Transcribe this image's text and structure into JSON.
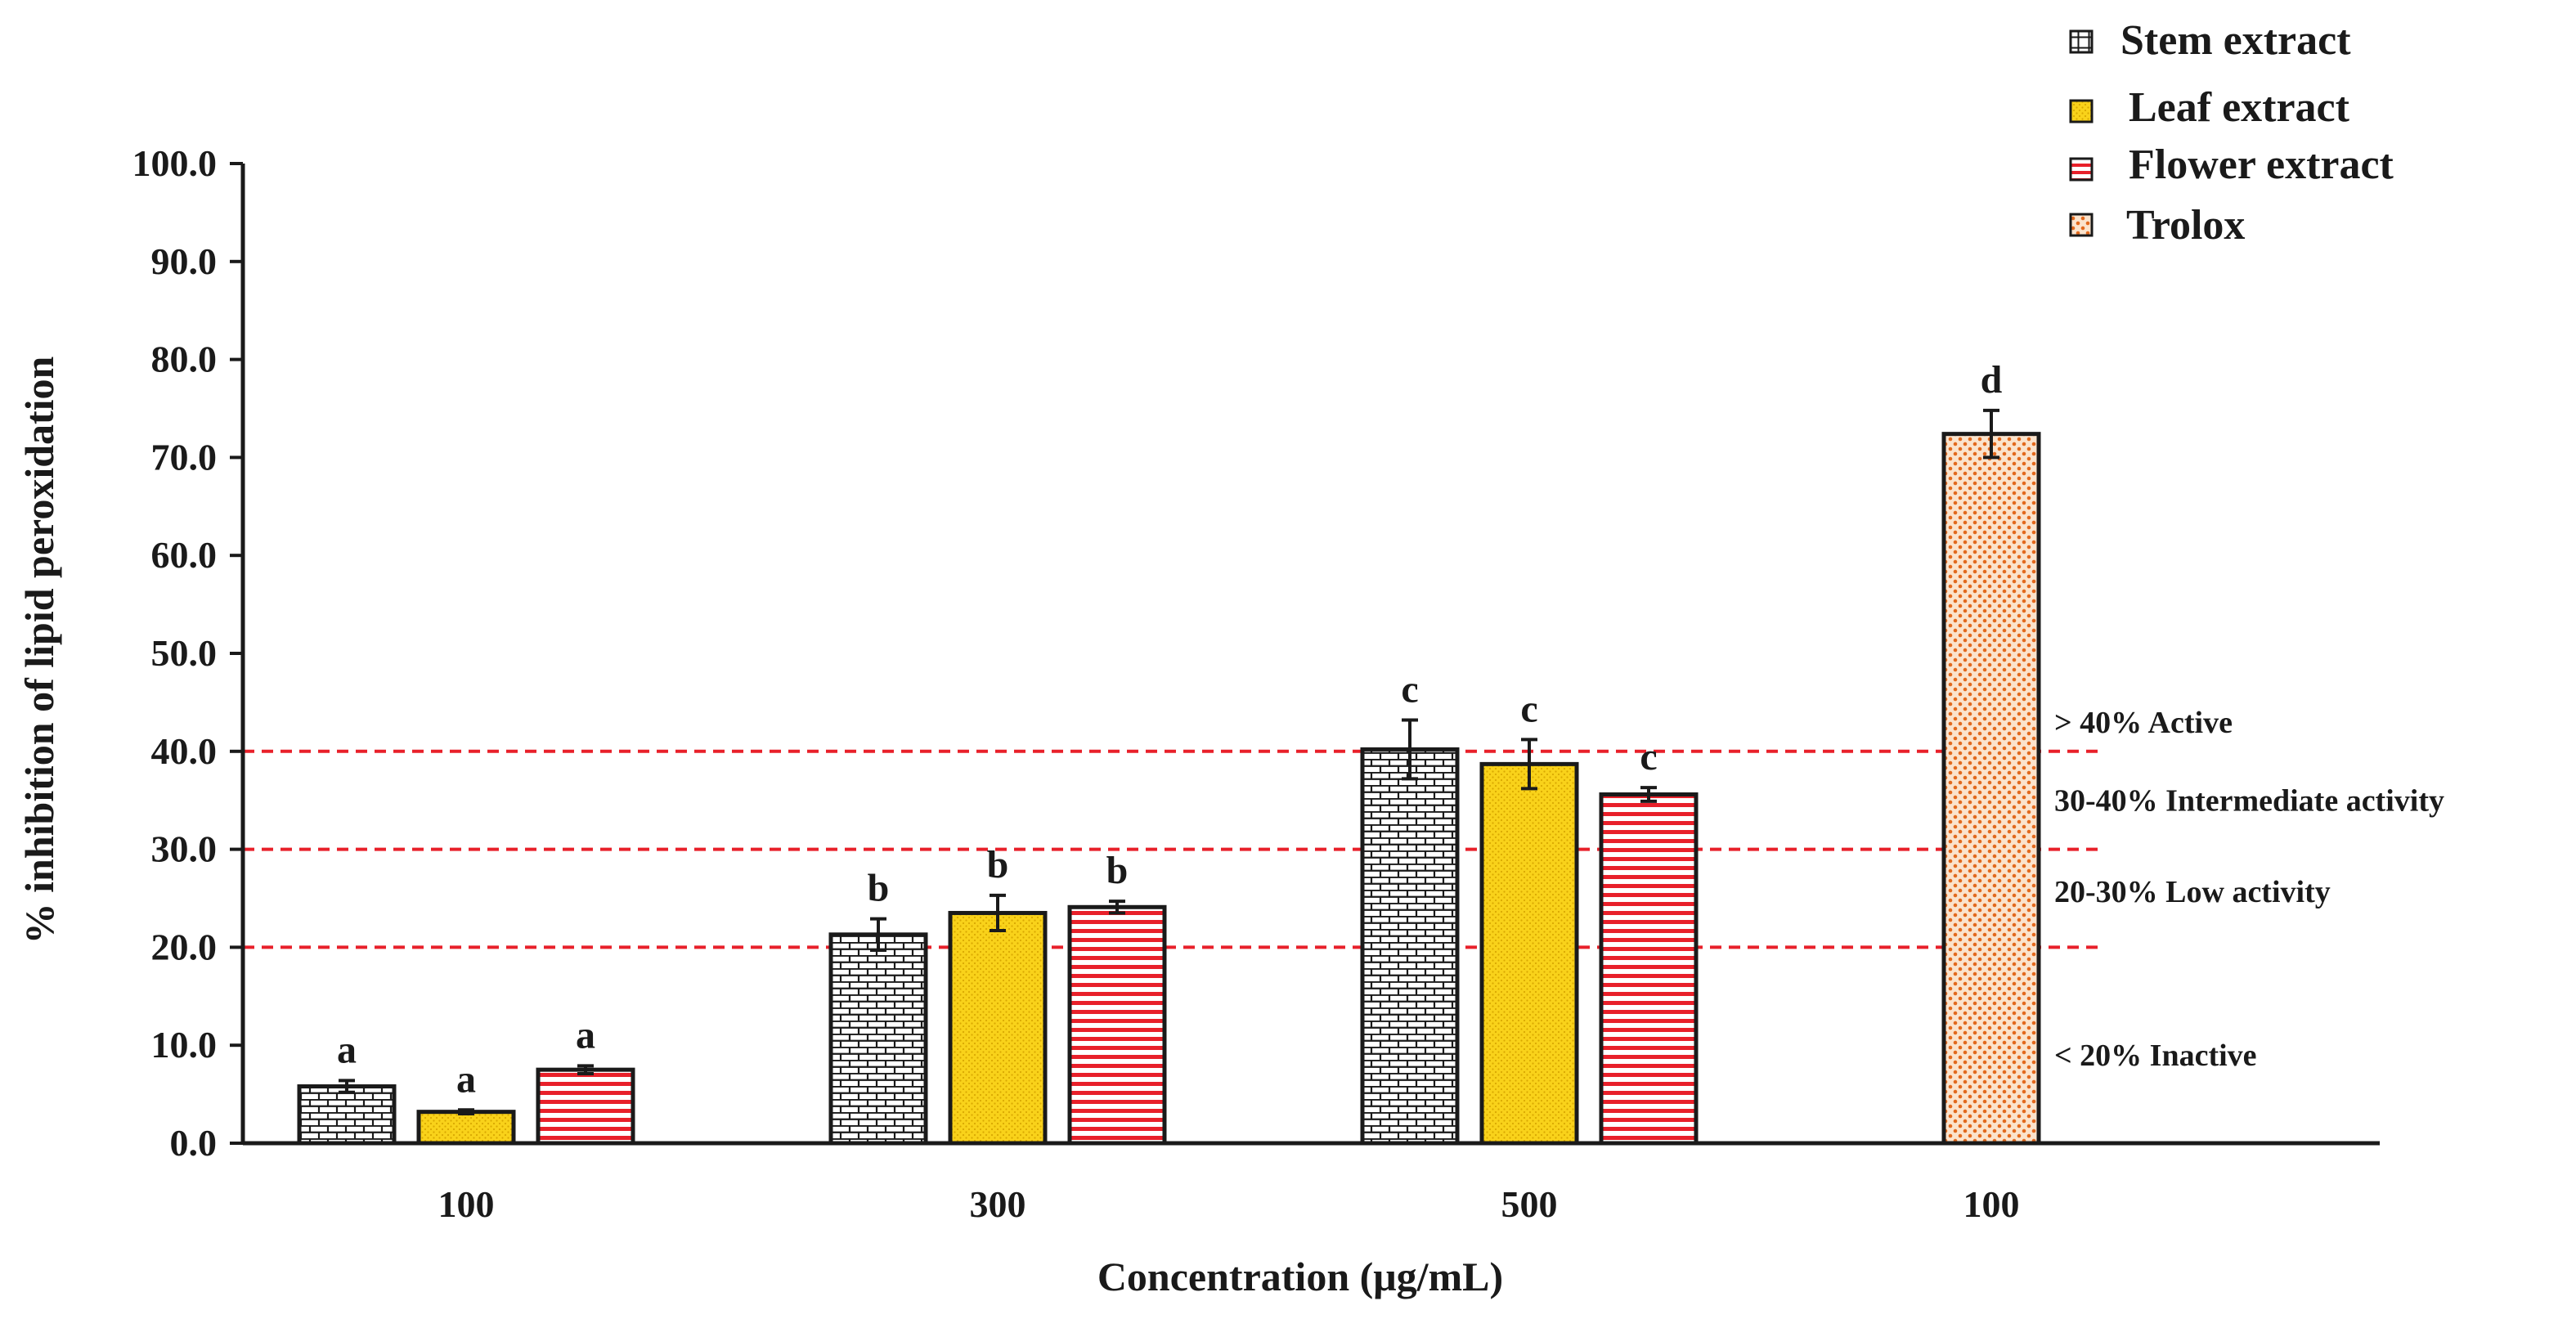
{
  "chart_data": {
    "type": "bar",
    "ylabel": "% inhibition of lipid peroxidation",
    "xlabel": "Concentration (μg/mL)",
    "ylim": [
      0,
      100
    ],
    "yticks": [
      "0.0",
      "10.0",
      "20.0",
      "30.0",
      "40.0",
      "50.0",
      "60.0",
      "70.0",
      "80.0",
      "90.0",
      "100.0"
    ],
    "grid": false,
    "legend_position": "top-right",
    "groups": [
      {
        "label": "100",
        "bars": [
          {
            "series": "Stem extract",
            "value": 5.8,
            "error": 0.6,
            "letter": "a"
          },
          {
            "series": "Leaf extract",
            "value": 3.2,
            "error": 0.2,
            "letter": "a"
          },
          {
            "series": "Flower extract",
            "value": 7.5,
            "error": 0.4,
            "letter": "a"
          }
        ]
      },
      {
        "label": "300",
        "bars": [
          {
            "series": "Stem extract",
            "value": 21.3,
            "error": 1.6,
            "letter": "b"
          },
          {
            "series": "Leaf extract",
            "value": 23.5,
            "error": 1.8,
            "letter": "b"
          },
          {
            "series": "Flower extract",
            "value": 24.1,
            "error": 0.6,
            "letter": "b"
          }
        ]
      },
      {
        "label": "500",
        "bars": [
          {
            "series": "Stem extract",
            "value": 40.2,
            "error": 3.0,
            "letter": "c"
          },
          {
            "series": "Leaf extract",
            "value": 38.7,
            "error": 2.5,
            "letter": "c"
          },
          {
            "series": "Flower extract",
            "value": 35.6,
            "error": 0.7,
            "letter": "c"
          }
        ]
      },
      {
        "label": "100",
        "bars": [
          {
            "series": "Trolox",
            "value": 72.4,
            "error": 2.4,
            "letter": "d"
          }
        ]
      }
    ],
    "series": [
      {
        "name": "Stem extract",
        "fill": "#ffffff",
        "pattern_color": "#1a1a1a",
        "pattern": "bricks"
      },
      {
        "name": "Leaf extract",
        "fill": "#f9d21a",
        "pattern_color": "#d9a800",
        "pattern": "dots"
      },
      {
        "name": "Flower extract",
        "fill": "#ffffff",
        "pattern_color": "#e8202a",
        "pattern": "horizontal-lines"
      },
      {
        "name": "Trolox",
        "fill": "#fbe3cc",
        "pattern_color": "#e2691d",
        "pattern": "dense-dots"
      }
    ],
    "thresholds": [
      {
        "value": 40,
        "color": "#e8202a"
      },
      {
        "value": 30,
        "color": "#e8202a"
      },
      {
        "value": 20,
        "color": "#e8202a"
      }
    ],
    "band_labels": [
      {
        "text": "> 40% Active",
        "value": 43
      },
      {
        "text": "30-40% Intermediate activity",
        "value": 35
      },
      {
        "text": "20-30% Low activity",
        "value": 25.7
      },
      {
        "text": "< 20% Inactive",
        "value": 9
      }
    ]
  }
}
